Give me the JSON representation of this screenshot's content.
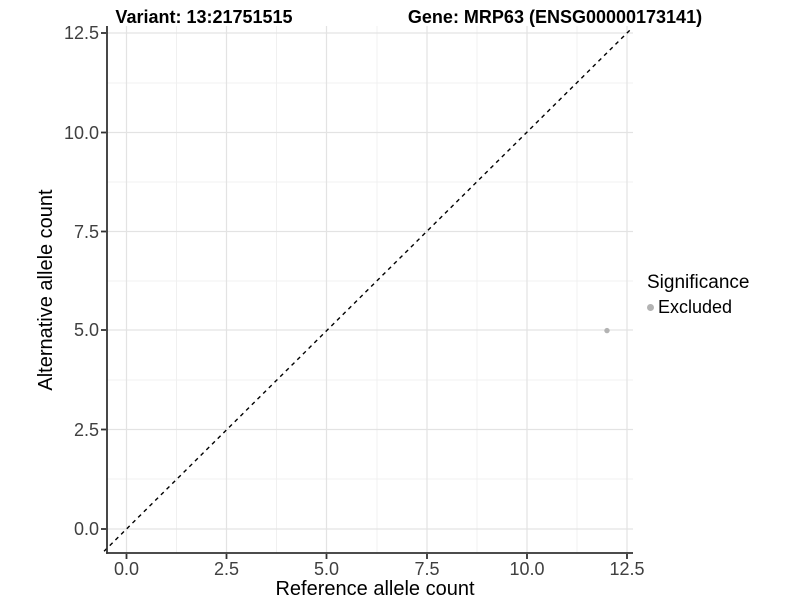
{
  "header": {
    "title_variant": "Variant: 13:21751515",
    "title_gene": "Gene: MRP63 (ENSG00000173141)"
  },
  "chart_data": {
    "type": "scatter",
    "title": "Variant: 13:21751515   Gene: MRP63 (ENSG00000173141)",
    "xlabel": "Reference allele count",
    "ylabel": "Alternative allele count",
    "x_tick_labels": [
      "0.0",
      "2.5",
      "5.0",
      "7.5",
      "10.0",
      "12.5"
    ],
    "y_tick_labels": [
      "0.0",
      "2.5",
      "5.0",
      "7.5",
      "10.0",
      "12.5"
    ],
    "x_tick_values": [
      0,
      2.5,
      5,
      7.5,
      10,
      12.5
    ],
    "y_tick_values": [
      0,
      2.5,
      5,
      7.5,
      10,
      12.5
    ],
    "xlim": [
      -0.56,
      12.6
    ],
    "ylim": [
      -0.6,
      12.7
    ],
    "grid": "major-and-minor",
    "points": [
      {
        "x": 12,
        "y": 5,
        "series": "Excluded"
      }
    ],
    "reference_line": {
      "kind": "identity",
      "slope": 1,
      "intercept": 0,
      "style": "dashed",
      "color": "#000000"
    },
    "legend": {
      "position": "right",
      "title": "Significance",
      "entries": [
        {
          "label": "Excluded",
          "color": "#b3b3b3"
        }
      ]
    },
    "colors": {
      "excluded_point": "#b3b3b3",
      "axis_line": "#333333",
      "tick_text": "#404040",
      "grid_major": "#e3e3e3",
      "grid_minor": "#f0f0f0",
      "background": "#ffffff"
    }
  }
}
